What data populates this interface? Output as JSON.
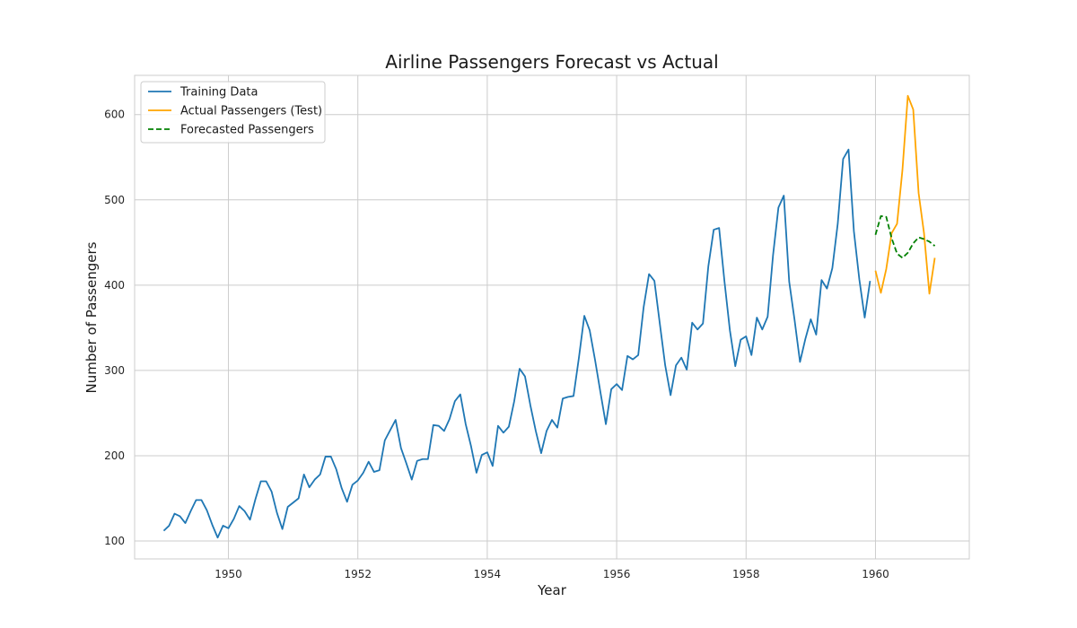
{
  "chart_data": {
    "type": "line",
    "title": "Airline Passengers Forecast vs Actual",
    "xlabel": "Year",
    "ylabel": "Number of Passengers",
    "xlim": [
      1948.55,
      1961.45
    ],
    "ylim": [
      79,
      646
    ],
    "xticks": [
      1950,
      1952,
      1954,
      1956,
      1958,
      1960
    ],
    "yticks": [
      100,
      200,
      300,
      400,
      500,
      600
    ],
    "grid": true,
    "legend_position": "top-left",
    "x_start": 1949.0,
    "x_step_months": 1,
    "series": [
      {
        "name": "Training Data",
        "color": "#1f77b4",
        "style": "solid",
        "start": 1949.0,
        "values": [
          112,
          118,
          132,
          129,
          121,
          135,
          148,
          148,
          136,
          119,
          104,
          118,
          115,
          126,
          141,
          135,
          125,
          149,
          170,
          170,
          158,
          133,
          114,
          140,
          145,
          150,
          178,
          163,
          172,
          178,
          199,
          199,
          184,
          162,
          146,
          166,
          171,
          180,
          193,
          181,
          183,
          218,
          230,
          242,
          209,
          191,
          172,
          194,
          196,
          196,
          236,
          235,
          229,
          243,
          264,
          272,
          237,
          211,
          180,
          201,
          204,
          188,
          235,
          227,
          234,
          264,
          302,
          293,
          259,
          229,
          203,
          229,
          242,
          233,
          267,
          269,
          270,
          315,
          364,
          347,
          312,
          274,
          237,
          278,
          284,
          277,
          317,
          313,
          318,
          374,
          413,
          405,
          355,
          306,
          271,
          306,
          315,
          301,
          356,
          348,
          355,
          422,
          465,
          467,
          404,
          347,
          305,
          336,
          340,
          318,
          362,
          348,
          363,
          435,
          491,
          505,
          404,
          359,
          310,
          337,
          360,
          342,
          406,
          396,
          420,
          472,
          548,
          559,
          463,
          407,
          362,
          405
        ]
      },
      {
        "name": "Actual Passengers (Test)",
        "color": "#ffa500",
        "style": "solid",
        "start": 1960.0,
        "values": [
          417,
          391,
          419,
          461,
          472,
          535,
          622,
          606,
          508,
          461,
          390,
          432
        ]
      },
      {
        "name": "Forecasted Passengers",
        "color": "#008000",
        "style": "dashed",
        "start": 1960.0,
        "values": [
          459,
          481,
          480,
          455,
          437,
          432,
          438,
          449,
          456,
          454,
          451,
          446
        ]
      }
    ]
  }
}
